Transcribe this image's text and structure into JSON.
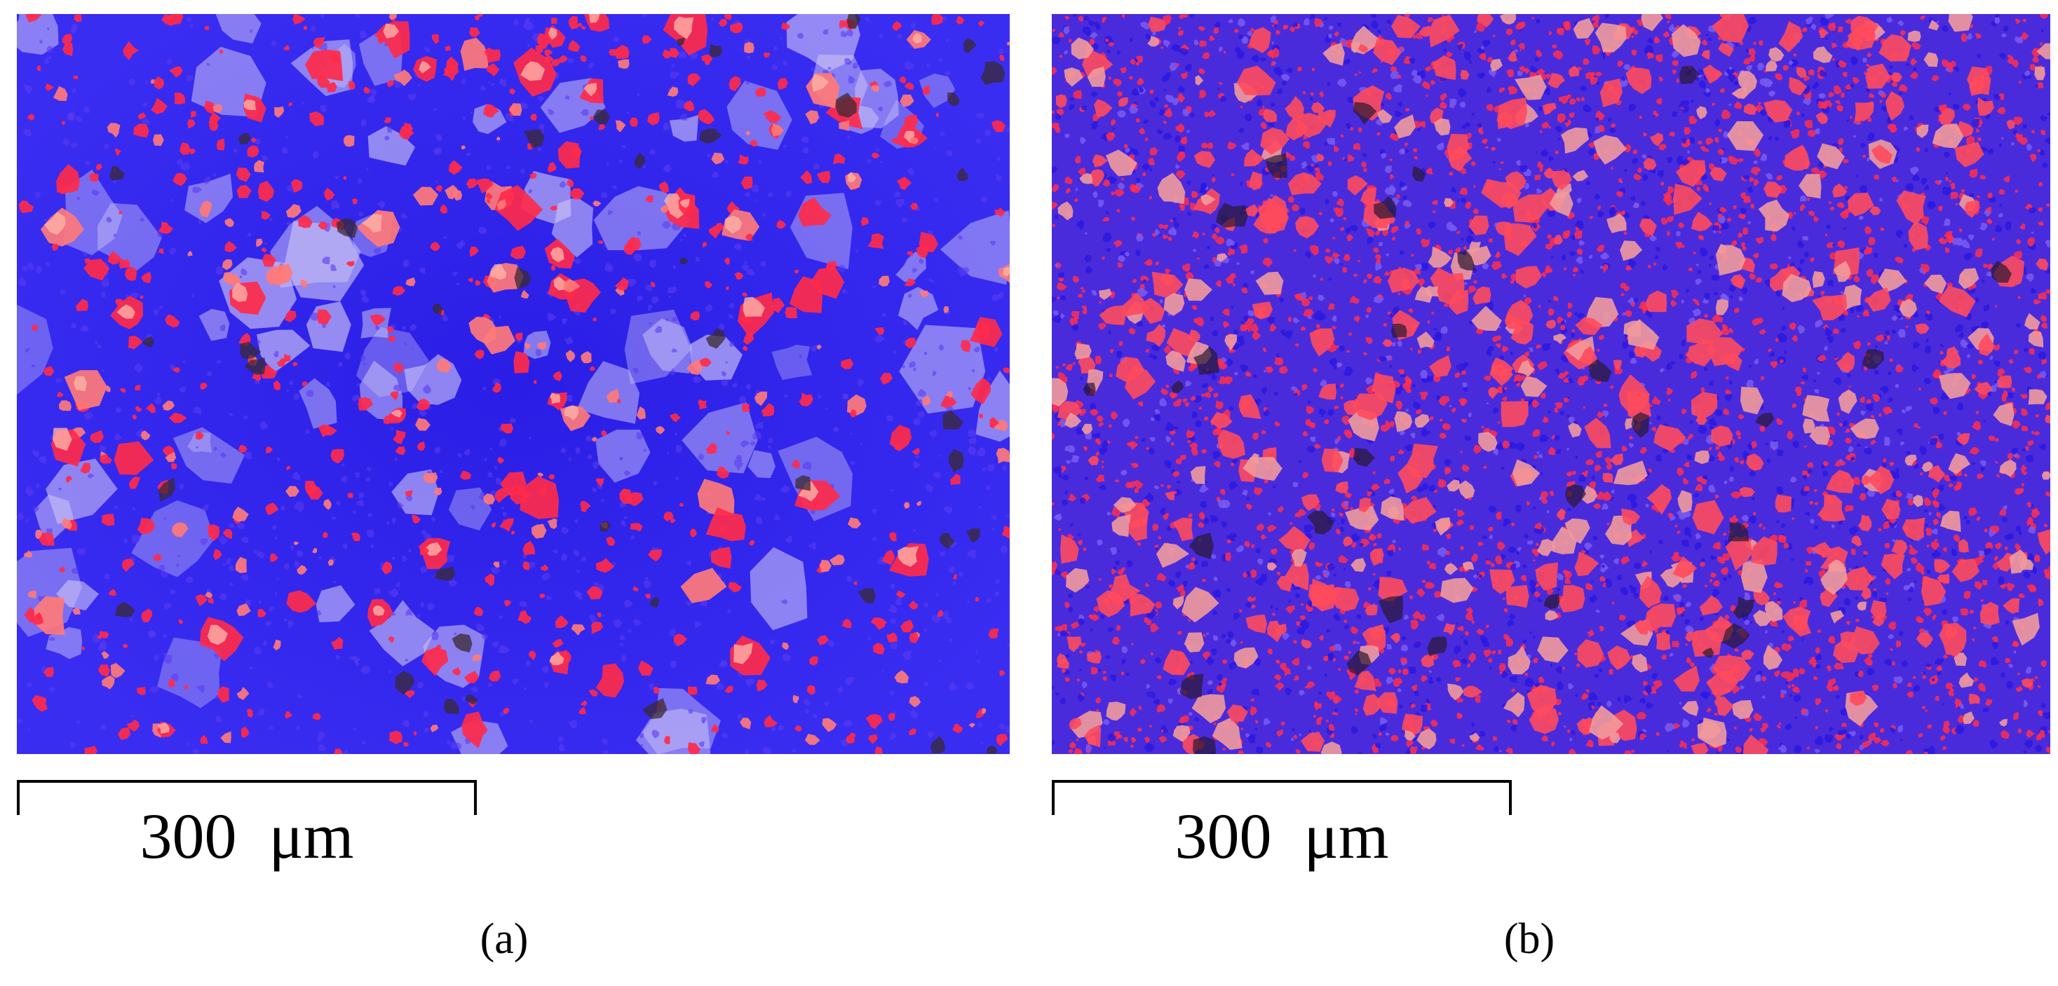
{
  "panels": [
    {
      "id": "a",
      "caption": "(a)",
      "scale_bar_label": "300  μm",
      "image_description_colors": {
        "matrix": "#3a28f0",
        "particles": "#ff2a4a",
        "highlights": "#d8d2f4"
      }
    },
    {
      "id": "b",
      "caption": "(b)",
      "scale_bar_label": "300  μm",
      "image_description_colors": {
        "matrix": "#3b2ad8",
        "particles": "#ff3350",
        "highlights": "#f0a7a8"
      }
    }
  ]
}
